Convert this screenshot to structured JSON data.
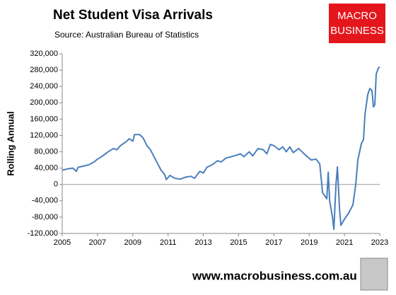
{
  "chart_data": {
    "type": "line",
    "title": "Net Student Visa Arrivals",
    "subtitle": "Source: Australian Bureau of Statistics",
    "y_label": "Rolling Annual",
    "color": "#4a7ebb",
    "x": [
      2005.0,
      2005.3,
      2005.6,
      2005.8,
      2005.9,
      2006.2,
      2006.5,
      2006.8,
      2007.0,
      2007.3,
      2007.6,
      2007.9,
      2008.1,
      2008.3,
      2008.6,
      2008.8,
      2009.0,
      2009.1,
      2009.4,
      2009.6,
      2009.8,
      2010.0,
      2010.3,
      2010.6,
      2010.8,
      2010.9,
      2011.1,
      2011.4,
      2011.7,
      2012.0,
      2012.3,
      2012.5,
      2012.8,
      2013.0,
      2013.2,
      2013.5,
      2013.8,
      2014.0,
      2014.3,
      2014.6,
      2014.9,
      2015.1,
      2015.3,
      2015.6,
      2015.8,
      2016.1,
      2016.4,
      2016.6,
      2016.8,
      2017.0,
      2017.3,
      2017.5,
      2017.7,
      2017.9,
      2018.1,
      2018.4,
      2018.6,
      2018.71,
      2019.11,
      2019.39,
      2019.6,
      2019.76,
      2019.92,
      2020.0,
      2020.08,
      2020.16,
      2020.32,
      2020.4,
      2020.52,
      2020.6,
      2020.72,
      2020.8,
      2021.0,
      2021.24,
      2021.48,
      2021.64,
      2021.76,
      2021.96,
      2022.08,
      2022.16,
      2022.32,
      2022.44,
      2022.56,
      2022.64,
      2022.72,
      2022.8,
      2022.92,
      2023.0
    ],
    "values": [
      35000,
      38000,
      40000,
      32000,
      42000,
      45000,
      48000,
      55000,
      62000,
      70000,
      80000,
      88000,
      85000,
      95000,
      104000,
      112000,
      106000,
      122000,
      122000,
      113000,
      95000,
      85000,
      60000,
      35000,
      25000,
      12000,
      22000,
      15000,
      13000,
      18000,
      20000,
      15000,
      32000,
      28000,
      42000,
      48000,
      58000,
      55000,
      65000,
      68000,
      72000,
      75000,
      68000,
      80000,
      70000,
      88000,
      85000,
      75000,
      98000,
      95000,
      85000,
      92000,
      80000,
      92000,
      78000,
      88000,
      80000,
      75000,
      60000,
      62000,
      50000,
      -20000,
      -30000,
      -35000,
      30000,
      -40000,
      -80000,
      -110000,
      0,
      43000,
      -60000,
      -100000,
      -85000,
      -70000,
      -50000,
      0,
      60000,
      100000,
      110000,
      170000,
      220000,
      235000,
      230000,
      190000,
      195000,
      270000,
      285000,
      288000
    ],
    "xlim": [
      2005,
      2023
    ],
    "xticks": [
      2005,
      2007,
      2009,
      2011,
      2013,
      2015,
      2017,
      2019,
      2021,
      2023
    ],
    "ylim": [
      -120000,
      320000
    ],
    "yticks": [
      {
        "value": -120000,
        "label": "-120,000"
      },
      {
        "value": -80000,
        "label": "-80,000"
      },
      {
        "value": -40000,
        "label": "-40,000"
      },
      0,
      {
        "value": 40000,
        "label": "40,000"
      },
      {
        "value": 80000,
        "label": "80,000"
      },
      {
        "value": 120000,
        "label": "120,000"
      },
      {
        "value": 160000,
        "label": "160,000"
      },
      {
        "value": 200000,
        "label": "200,000"
      },
      {
        "value": 240000,
        "label": "240,000"
      },
      {
        "value": 280000,
        "label": "280,000"
      },
      {
        "value": 320000,
        "label": "320,000"
      }
    ],
    "grid": false
  },
  "logo": {
    "line1": "MACRO",
    "line2": "BUSINESS"
  },
  "footer": "www.macrobusiness.com.au"
}
